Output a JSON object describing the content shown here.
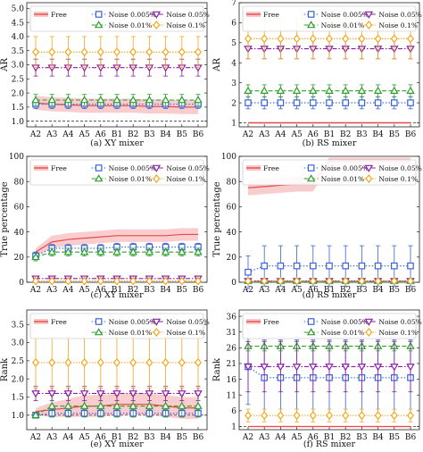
{
  "x_categories": [
    "A2",
    "A3",
    "A4",
    "A5",
    "A6",
    "B1",
    "B2",
    "B3",
    "B4",
    "B5",
    "B6"
  ],
  "legend": {
    "free": "Free",
    "noise_0005": "Noise 0.005%",
    "noise_001": "Noise 0.01%",
    "noise_005": "Noise 0.05%",
    "noise_01": "Noise 0.1%"
  },
  "series_colors": {
    "free": "#e84a4a",
    "noise_0005": "#3b63d6",
    "noise_001": "#2e9e2e",
    "noise_005": "#8a1fa3",
    "noise_01": "#f0a81e"
  },
  "chart_data": [
    {
      "type": "line",
      "caption": "(a)  XY mixer",
      "ylabel": "AR",
      "ylim": [
        0.8,
        5.2
      ],
      "yticks": [
        1.0,
        1.5,
        2.0,
        2.5,
        3.0,
        3.5,
        4.0,
        4.5,
        5.0
      ],
      "hline": 1.0,
      "legend_position": "top",
      "series": [
        {
          "key": "free",
          "values": [
            1.65,
            1.6,
            1.58,
            1.55,
            1.55,
            1.55,
            1.55,
            1.52,
            1.52,
            1.5,
            1.5
          ],
          "band": [
            0.25,
            0.25,
            0.25,
            0.25,
            0.25,
            0.25,
            0.25,
            0.25,
            0.25,
            0.25,
            0.25
          ],
          "marker": "none"
        },
        {
          "key": "noise_0005",
          "values": [
            1.6,
            1.6,
            1.6,
            1.6,
            1.6,
            1.6,
            1.6,
            1.6,
            1.6,
            1.6,
            1.6
          ],
          "err": [
            0.15,
            0.15,
            0.15,
            0.15,
            0.15,
            0.15,
            0.15,
            0.15,
            0.15,
            0.15,
            0.15
          ],
          "marker": "square"
        },
        {
          "key": "noise_001",
          "values": [
            1.75,
            1.75,
            1.75,
            1.75,
            1.75,
            1.75,
            1.75,
            1.75,
            1.75,
            1.75,
            1.75
          ],
          "err": [
            0.2,
            0.2,
            0.2,
            0.2,
            0.2,
            0.2,
            0.2,
            0.2,
            0.2,
            0.2,
            0.2
          ],
          "marker": "triangle-up"
        },
        {
          "key": "noise_005",
          "values": [
            2.9,
            2.9,
            2.9,
            2.9,
            2.9,
            2.9,
            2.9,
            2.9,
            2.9,
            2.9,
            2.9
          ],
          "err": [
            0.3,
            0.3,
            0.3,
            0.3,
            0.3,
            0.3,
            0.3,
            0.3,
            0.3,
            0.3,
            0.3
          ],
          "marker": "triangle-down"
        },
        {
          "key": "noise_01",
          "values": [
            3.45,
            3.45,
            3.45,
            3.45,
            3.45,
            3.45,
            3.45,
            3.45,
            3.45,
            3.45,
            3.45
          ],
          "err": [
            0.55,
            0.55,
            0.55,
            0.55,
            0.55,
            0.55,
            0.55,
            0.55,
            0.55,
            0.55,
            0.55
          ],
          "marker": "diamond"
        }
      ]
    },
    {
      "type": "line",
      "caption": "(b)  RS mixer",
      "ylabel": "AR",
      "ylim": [
        0.8,
        7.0
      ],
      "yticks": [
        1.0,
        2.0,
        3.0,
        4.0,
        5.0,
        6.0,
        7.0
      ],
      "hline": 1.0,
      "legend_position": "top",
      "series": [
        {
          "key": "free",
          "values": [
            1.0,
            1.0,
            1.0,
            1.0,
            1.0,
            1.0,
            1.0,
            1.0,
            1.0,
            1.0,
            1.0
          ],
          "band": [
            0.05,
            0.05,
            0.05,
            0.05,
            0.05,
            0.05,
            0.05,
            0.05,
            0.05,
            0.05,
            0.05
          ],
          "marker": "none"
        },
        {
          "key": "noise_0005",
          "values": [
            2.0,
            2.0,
            2.0,
            2.0,
            2.0,
            2.0,
            2.0,
            2.0,
            2.0,
            2.0,
            2.0
          ],
          "err": [
            0.3,
            0.3,
            0.3,
            0.3,
            0.3,
            0.3,
            0.3,
            0.3,
            0.3,
            0.3,
            0.3
          ],
          "marker": "square"
        },
        {
          "key": "noise_001",
          "values": [
            2.6,
            2.6,
            2.6,
            2.6,
            2.6,
            2.6,
            2.6,
            2.6,
            2.6,
            2.6,
            2.6
          ],
          "err": [
            0.3,
            0.3,
            0.3,
            0.3,
            0.3,
            0.3,
            0.3,
            0.3,
            0.3,
            0.3,
            0.3
          ],
          "marker": "triangle-up"
        },
        {
          "key": "noise_005",
          "values": [
            4.7,
            4.7,
            4.7,
            4.7,
            4.7,
            4.7,
            4.7,
            4.7,
            4.7,
            4.7,
            4.7
          ],
          "err": [
            0.5,
            0.5,
            0.5,
            0.5,
            0.5,
            0.5,
            0.5,
            0.5,
            0.5,
            0.5,
            0.5
          ],
          "marker": "triangle-down"
        },
        {
          "key": "noise_01",
          "values": [
            5.2,
            5.2,
            5.2,
            5.2,
            5.2,
            5.2,
            5.2,
            5.2,
            5.2,
            5.2,
            5.2
          ],
          "err": [
            1.0,
            1.0,
            1.0,
            1.0,
            1.0,
            1.0,
            1.0,
            1.0,
            1.0,
            1.0,
            1.0
          ],
          "marker": "diamond"
        }
      ]
    },
    {
      "type": "line",
      "caption": "(c)  XY mixer",
      "ylabel": "True percentage",
      "ylim": [
        0,
        100
      ],
      "yticks": [
        0,
        20,
        40,
        60,
        80,
        100
      ],
      "hline": null,
      "legend_position": "top",
      "series": [
        {
          "key": "free",
          "values": [
            24,
            32,
            34,
            35,
            36,
            37,
            37,
            37,
            37,
            38,
            38
          ],
          "band": [
            3,
            5,
            5,
            5,
            5,
            5,
            5,
            5,
            5,
            5,
            5
          ],
          "marker": "none"
        },
        {
          "key": "noise_0005",
          "values": [
            21,
            27,
            27,
            27,
            27,
            28,
            28,
            28,
            28,
            28,
            28
          ],
          "err": [
            3,
            3,
            3,
            3,
            3,
            3,
            3,
            3,
            3,
            3,
            3
          ],
          "marker": "square"
        },
        {
          "key": "noise_001",
          "values": [
            20,
            24,
            24,
            24,
            24,
            24,
            24,
            24,
            24,
            24,
            24
          ],
          "err": [
            3,
            3,
            3,
            3,
            3,
            3,
            3,
            3,
            3,
            3,
            3
          ],
          "marker": "triangle-up"
        },
        {
          "key": "noise_005",
          "values": [
            3,
            3,
            3,
            3,
            3,
            3,
            3,
            3,
            3,
            3,
            3
          ],
          "err": [
            1,
            1,
            1,
            1,
            1,
            1,
            1,
            1,
            1,
            1,
            1
          ],
          "marker": "triangle-down"
        },
        {
          "key": "noise_01",
          "values": [
            1,
            1,
            1,
            1,
            1,
            1,
            1,
            1,
            1,
            1,
            1
          ],
          "err": [
            1,
            1,
            1,
            1,
            1,
            1,
            1,
            1,
            1,
            1,
            1
          ],
          "marker": "diamond"
        }
      ]
    },
    {
      "type": "line",
      "caption": "(d)  RS mixer",
      "ylabel": "True percentage",
      "ylim": [
        0,
        100
      ],
      "yticks": [
        0,
        20,
        40,
        60,
        80,
        100
      ],
      "hline": null,
      "legend_position": "top",
      "series": [
        {
          "key": "free",
          "values": [
            75,
            76,
            77,
            78,
            78,
            96,
            96,
            96,
            96,
            96,
            96
          ],
          "band": [
            6,
            6,
            6,
            6,
            6,
            3,
            3,
            3,
            3,
            3,
            3
          ],
          "marker": "none"
        },
        {
          "key": "noise_0005",
          "values": [
            8,
            13,
            13,
            13,
            13,
            13,
            13,
            13,
            13,
            13,
            13
          ],
          "err": [
            13,
            16,
            16,
            16,
            16,
            16,
            16,
            16,
            16,
            16,
            16
          ],
          "marker": "square"
        },
        {
          "key": "noise_001",
          "values": [
            1,
            1,
            1,
            1,
            1,
            1,
            1,
            1,
            1,
            1,
            1
          ],
          "err": [
            1,
            1,
            1,
            1,
            1,
            1,
            1,
            1,
            1,
            1,
            1
          ],
          "marker": "triangle-up"
        },
        {
          "key": "noise_005",
          "values": [
            1,
            1,
            1,
            1,
            1,
            1,
            1,
            1,
            1,
            1,
            1
          ],
          "err": [
            1,
            1,
            1,
            1,
            1,
            1,
            1,
            1,
            1,
            1,
            1
          ],
          "marker": "triangle-down"
        },
        {
          "key": "noise_01",
          "values": [
            1,
            1,
            1,
            1,
            1,
            1,
            1,
            1,
            1,
            1,
            1
          ],
          "err": [
            1,
            1,
            1,
            1,
            1,
            1,
            1,
            1,
            1,
            1,
            1
          ],
          "marker": "diamond"
        }
      ]
    },
    {
      "type": "line",
      "caption": "(e)  XY mixer",
      "ylabel": "Rank",
      "ylim": [
        0.6,
        3.9
      ],
      "yticks": [
        1,
        1.5,
        2,
        2.5,
        3,
        3.5
      ],
      "hline": 1.0,
      "legend_position": "top",
      "series": [
        {
          "key": "free",
          "values": [
            1.1,
            1.15,
            1.2,
            1.25,
            1.25,
            1.3,
            1.3,
            1.3,
            1.25,
            1.2,
            1.2
          ],
          "band": [
            0.1,
            0.2,
            0.25,
            0.3,
            0.3,
            0.3,
            0.3,
            0.3,
            0.3,
            0.3,
            0.3
          ],
          "marker": "none"
        },
        {
          "key": "noise_0005",
          "values": [
            1.0,
            1.05,
            1.05,
            1.05,
            1.05,
            1.05,
            1.05,
            1.05,
            1.05,
            1.05,
            1.05
          ],
          "err": [
            0.05,
            0.1,
            0.1,
            0.1,
            0.1,
            0.1,
            0.1,
            0.1,
            0.1,
            0.1,
            0.1
          ],
          "marker": "square"
        },
        {
          "key": "noise_001",
          "values": [
            1.0,
            1.25,
            1.25,
            1.25,
            1.25,
            1.25,
            1.25,
            1.25,
            1.25,
            1.25,
            1.25
          ],
          "err": [
            0.05,
            0.3,
            0.3,
            0.3,
            0.3,
            0.3,
            0.3,
            0.3,
            0.3,
            0.3,
            0.3
          ],
          "marker": "triangle-up"
        },
        {
          "key": "noise_005",
          "values": [
            1.6,
            1.6,
            1.6,
            1.6,
            1.6,
            1.6,
            1.6,
            1.6,
            1.6,
            1.6,
            1.6
          ],
          "err": [
            0.2,
            0.2,
            0.2,
            0.2,
            0.2,
            0.2,
            0.2,
            0.2,
            0.2,
            0.2,
            0.2
          ],
          "marker": "triangle-down"
        },
        {
          "key": "noise_01",
          "values": [
            2.45,
            2.45,
            2.45,
            2.45,
            2.45,
            2.45,
            2.45,
            2.45,
            2.45,
            2.45,
            2.45
          ],
          "err": [
            0.7,
            0.7,
            0.7,
            0.7,
            0.7,
            0.7,
            0.7,
            0.7,
            0.7,
            0.7,
            0.7
          ],
          "marker": "diamond"
        }
      ]
    },
    {
      "type": "line",
      "caption": "(f)  RS mixer",
      "ylabel": "Rank",
      "ylim": [
        0,
        38
      ],
      "yticks": [
        1,
        6,
        11,
        16,
        21,
        26,
        31,
        36
      ],
      "hline": 1.0,
      "legend_position": "top",
      "series": [
        {
          "key": "free",
          "values": [
            1,
            1,
            1,
            1,
            1,
            1,
            1,
            1,
            1,
            1,
            1
          ],
          "band": [
            0.2,
            0.2,
            0.2,
            0.2,
            0.2,
            0.2,
            0.2,
            0.2,
            0.2,
            0.2,
            0.2
          ],
          "marker": "none"
        },
        {
          "key": "noise_0005",
          "values": [
            20,
            16.5,
            16.5,
            16.5,
            16.5,
            16.5,
            16.5,
            16.5,
            16.5,
            16.5,
            16.5
          ],
          "err": [
            12,
            12,
            12,
            12,
            12,
            12,
            12,
            12,
            12,
            12,
            12
          ],
          "marker": "square"
        },
        {
          "key": "noise_001",
          "values": [
            26.5,
            26.5,
            26.5,
            26.5,
            26.5,
            26.5,
            26.5,
            26.5,
            26.5,
            26.5,
            26.5
          ],
          "err": [
            1.5,
            1.5,
            1.5,
            1.5,
            1.5,
            1.5,
            1.5,
            1.5,
            1.5,
            1.5,
            1.5
          ],
          "marker": "triangle-up"
        },
        {
          "key": "noise_005",
          "values": [
            20,
            20,
            20,
            20,
            20,
            20,
            20,
            20,
            20,
            20,
            20
          ],
          "err": [
            8,
            8,
            8,
            8,
            8,
            8,
            8,
            8,
            8,
            8,
            8
          ],
          "marker": "triangle-down"
        },
        {
          "key": "noise_01",
          "values": [
            4.5,
            4.5,
            4.5,
            4.5,
            4.5,
            4.5,
            4.5,
            4.5,
            4.5,
            4.5,
            4.5
          ],
          "err": [
            2,
            2,
            2,
            2,
            2,
            2,
            2,
            2,
            2,
            2,
            2
          ],
          "marker": "diamond"
        }
      ]
    }
  ]
}
